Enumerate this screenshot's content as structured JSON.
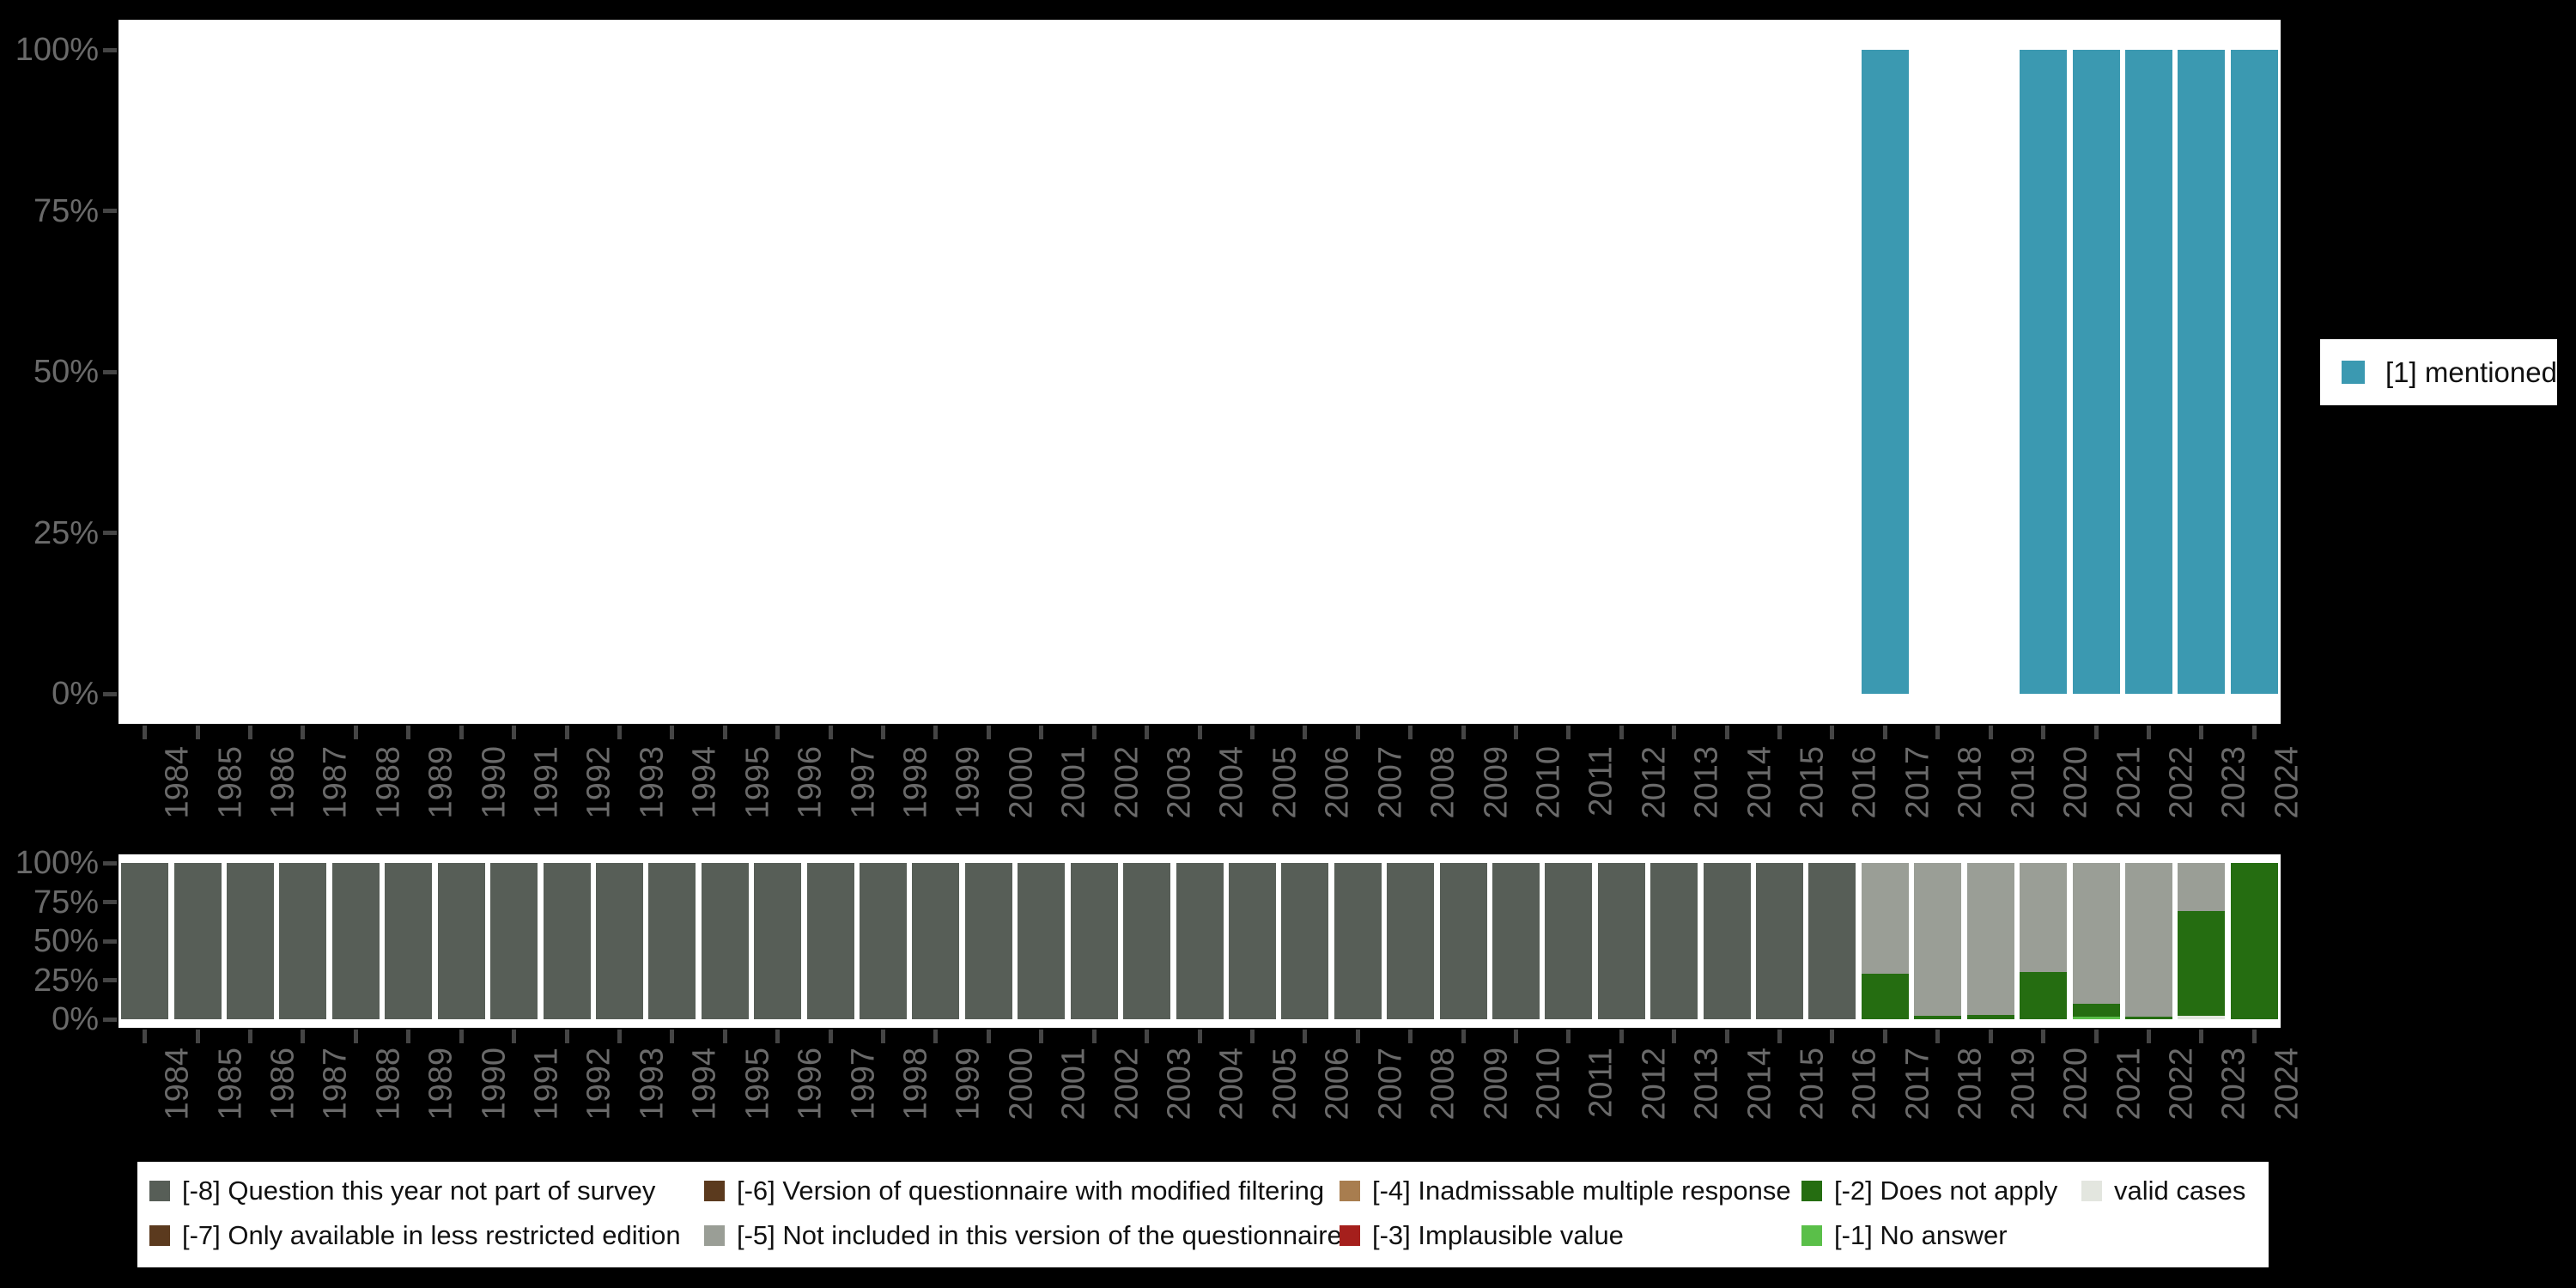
{
  "colors": {
    "mentioned": "#3b99b1",
    "-8": "#575e57",
    "-7": "#5b3a1e",
    "-6": "#5b3a1e",
    "-5": "#9a9e96",
    "-4": "#a87d4f",
    "-3": "#a51f1c",
    "-2": "#256d11",
    "-1": "#5abf49",
    "valid": "#e3e6df",
    "background": "#000000",
    "plot_background": "#ffffff",
    "axis_text": "#6a6a6a",
    "tick": "#454545",
    "legend_text": "#111111"
  },
  "legend_right": {
    "label": "[1] mentioned",
    "color_key": "mentioned"
  },
  "legend_bottom": {
    "items": [
      {
        "label": "[-8] Question this year not part of survey",
        "color_key": "-8",
        "col": 0,
        "row": 0
      },
      {
        "label": "[-7] Only available in less restricted edition",
        "color_key": "-7",
        "col": 0,
        "row": 1
      },
      {
        "label": "[-6] Version of questionnaire with modified filtering",
        "color_key": "-6",
        "col": 1,
        "row": 0
      },
      {
        "label": "[-5] Not included in this version of the questionnaire",
        "color_key": "-5",
        "col": 1,
        "row": 1
      },
      {
        "label": "[-4] Inadmissable multiple response",
        "color_key": "-4",
        "col": 2,
        "row": 0
      },
      {
        "label": "[-3] Implausible value",
        "color_key": "-3",
        "col": 2,
        "row": 1
      },
      {
        "label": "[-2] Does not apply",
        "color_key": "-2",
        "col": 3,
        "row": 0
      },
      {
        "label": "[-1] No answer",
        "color_key": "-1",
        "col": 3,
        "row": 1
      },
      {
        "label": "valid cases",
        "color_key": "valid",
        "col": 4,
        "row": 0
      }
    ]
  },
  "chart_data": [
    {
      "type": "bar",
      "title": "",
      "xlabel": "",
      "ylabel": "",
      "ylim": [
        0,
        100
      ],
      "grid": false,
      "legend_position": "right",
      "y_ticks": [
        "100%",
        "75%",
        "50%",
        "25%",
        "0%"
      ],
      "categories": [
        "1984",
        "1985",
        "1986",
        "1987",
        "1988",
        "1989",
        "1990",
        "1991",
        "1992",
        "1993",
        "1994",
        "1995",
        "1996",
        "1997",
        "1998",
        "1999",
        "2000",
        "2001",
        "2002",
        "2003",
        "2004",
        "2005",
        "2006",
        "2007",
        "2008",
        "2009",
        "2010",
        "2011",
        "2012",
        "2013",
        "2014",
        "2015",
        "2016",
        "2017",
        "2018",
        "2019",
        "2020",
        "2021",
        "2022",
        "2023",
        "2024"
      ],
      "series": [
        {
          "name": "[1] mentioned",
          "color_key": "mentioned",
          "values": [
            null,
            null,
            null,
            null,
            null,
            null,
            null,
            null,
            null,
            null,
            null,
            null,
            null,
            null,
            null,
            null,
            null,
            null,
            null,
            null,
            null,
            null,
            null,
            null,
            null,
            null,
            null,
            null,
            null,
            null,
            null,
            null,
            null,
            100,
            null,
            null,
            100,
            100,
            100,
            100,
            100
          ]
        }
      ]
    },
    {
      "type": "stacked-bar",
      "title": "",
      "xlabel": "",
      "ylabel": "",
      "ylim": [
        0,
        100
      ],
      "grid": false,
      "legend_position": "bottom",
      "y_ticks": [
        "100%",
        "75%",
        "50%",
        "25%",
        "0%"
      ],
      "categories": [
        "1984",
        "1985",
        "1986",
        "1987",
        "1988",
        "1989",
        "1990",
        "1991",
        "1992",
        "1993",
        "1994",
        "1995",
        "1996",
        "1997",
        "1998",
        "1999",
        "2000",
        "2001",
        "2002",
        "2003",
        "2004",
        "2005",
        "2006",
        "2007",
        "2008",
        "2009",
        "2010",
        "2011",
        "2012",
        "2013",
        "2014",
        "2015",
        "2016",
        "2017",
        "2018",
        "2019",
        "2020",
        "2021",
        "2022",
        "2023",
        "2024"
      ],
      "stacks": [
        [
          [
            "-8",
            100
          ]
        ],
        [
          [
            "-8",
            100
          ]
        ],
        [
          [
            "-8",
            100
          ]
        ],
        [
          [
            "-8",
            100
          ]
        ],
        [
          [
            "-8",
            100
          ]
        ],
        [
          [
            "-8",
            100
          ]
        ],
        [
          [
            "-8",
            100
          ]
        ],
        [
          [
            "-8",
            100
          ]
        ],
        [
          [
            "-8",
            100
          ]
        ],
        [
          [
            "-8",
            100
          ]
        ],
        [
          [
            "-8",
            100
          ]
        ],
        [
          [
            "-8",
            100
          ]
        ],
        [
          [
            "-8",
            100
          ]
        ],
        [
          [
            "-8",
            100
          ]
        ],
        [
          [
            "-8",
            100
          ]
        ],
        [
          [
            "-8",
            100
          ]
        ],
        [
          [
            "-8",
            100
          ]
        ],
        [
          [
            "-8",
            100
          ]
        ],
        [
          [
            "-8",
            100
          ]
        ],
        [
          [
            "-8",
            100
          ]
        ],
        [
          [
            "-8",
            100
          ]
        ],
        [
          [
            "-8",
            100
          ]
        ],
        [
          [
            "-8",
            100
          ]
        ],
        [
          [
            "-8",
            100
          ]
        ],
        [
          [
            "-8",
            100
          ]
        ],
        [
          [
            "-8",
            100
          ]
        ],
        [
          [
            "-8",
            100
          ]
        ],
        [
          [
            "-8",
            100
          ]
        ],
        [
          [
            "-8",
            100
          ]
        ],
        [
          [
            "-8",
            100
          ]
        ],
        [
          [
            "-8",
            100
          ]
        ],
        [
          [
            "-8",
            100
          ]
        ],
        [
          [
            "-8",
            100
          ]
        ],
        [
          [
            "-2",
            29
          ],
          [
            "-5",
            71
          ]
        ],
        [
          [
            "-2",
            2
          ],
          [
            "-5",
            98
          ]
        ],
        [
          [
            "-2",
            3
          ],
          [
            "-5",
            97
          ]
        ],
        [
          [
            "-2",
            30
          ],
          [
            "-5",
            70
          ]
        ],
        [
          [
            "-1",
            1.5
          ],
          [
            "-2",
            8.5
          ],
          [
            "-5",
            90
          ]
        ],
        [
          [
            "-2",
            1.5
          ],
          [
            "-5",
            98.5
          ]
        ],
        [
          [
            "valid",
            2
          ],
          [
            "-2",
            67
          ],
          [
            "-5",
            31
          ]
        ],
        [
          [
            "-2",
            100
          ]
        ]
      ]
    }
  ]
}
